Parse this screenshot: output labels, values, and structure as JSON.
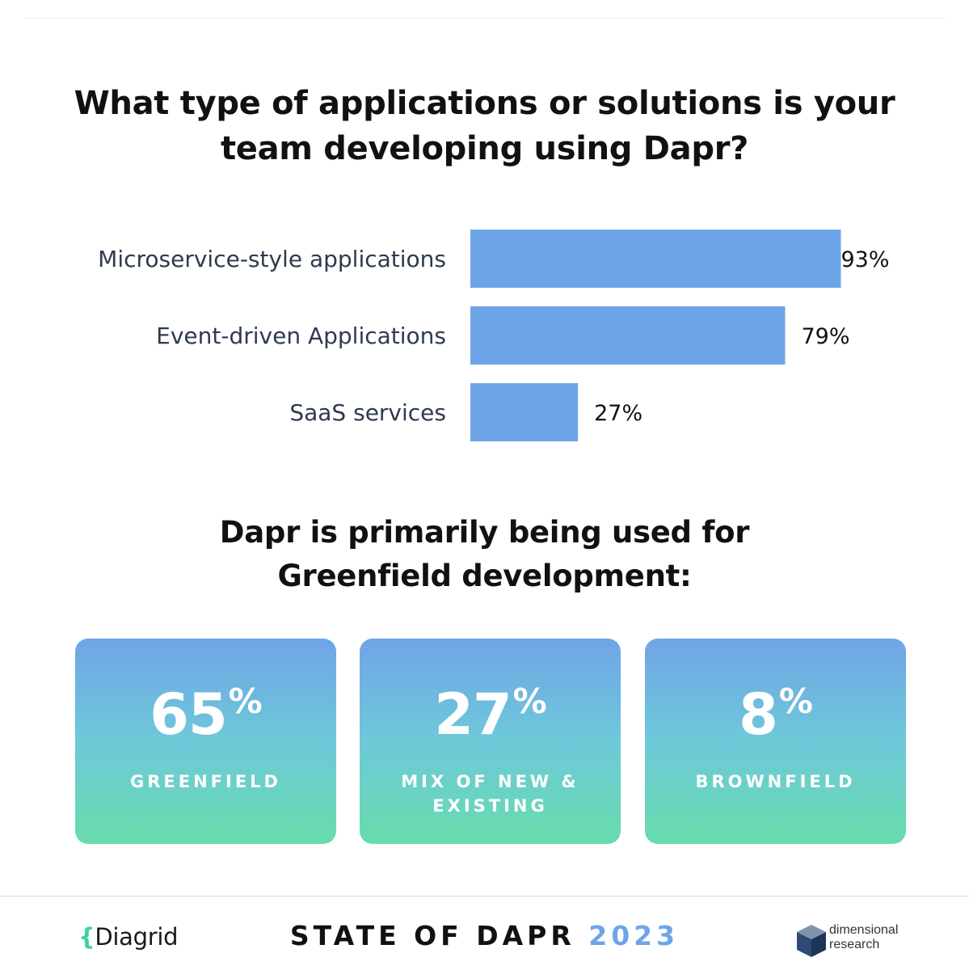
{
  "title": {
    "line1": "What type of applications or solutions is your",
    "line2": "team developing using Dapr?"
  },
  "chart_data": {
    "type": "bar",
    "orientation": "horizontal",
    "categories": [
      "Microservice-style applications",
      "Event-driven Applications",
      "SaaS services"
    ],
    "values": [
      93,
      79,
      27
    ],
    "value_labels": [
      "93%",
      "79%",
      "27%"
    ],
    "unit": "%",
    "xlim": [
      0,
      100
    ],
    "grid": false,
    "bar_color": "#6ea5e8"
  },
  "subtitle": {
    "line1": "Dapr is primarily being used for",
    "line2": "Greenfield development:"
  },
  "stats": [
    {
      "value": "65",
      "suffix": "%",
      "label": "GREENFIELD"
    },
    {
      "value": "27",
      "suffix": "%",
      "label": "MIX OF NEW & EXISTING"
    },
    {
      "value": "8",
      "suffix": "%",
      "label": "BROWNFIELD"
    }
  ],
  "footer": {
    "left_logo_brace": "{",
    "left_logo_text": "Diagrid",
    "title": "STATE OF DAPR",
    "year": "2023",
    "right_logo_line1": "dimensional",
    "right_logo_line2": "research"
  },
  "colors": {
    "bar": "#6ea5e8",
    "accent_year": "#6ea5e8",
    "card_top": "#6fa4e6",
    "card_bottom": "#67dcac",
    "diagrid_brace": "#3fd19a"
  },
  "icons": {
    "right_logo": "cube-icon"
  }
}
